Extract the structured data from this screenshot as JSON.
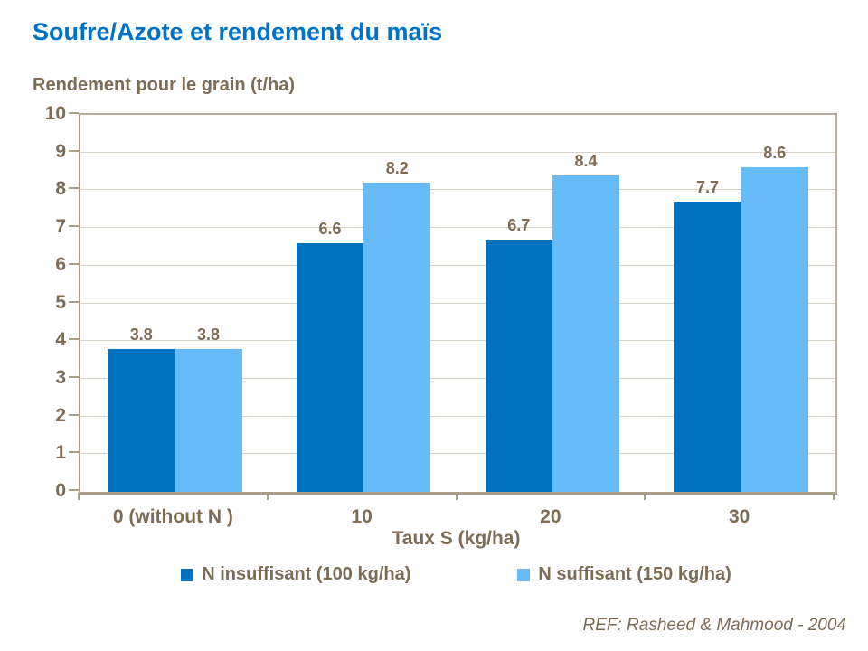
{
  "title": "Soufre/Azote et rendement du maïs",
  "footer": "REF: Rasheed & Mahmood - 2004",
  "colors": {
    "title_blue": "#0072C6",
    "text_brown": "#7D6B54",
    "gridline": "#D8D1C5",
    "axis_line": "#AB9F8C",
    "series1": "#0072C0",
    "series2": "#66BBF8"
  },
  "chart_data": {
    "type": "bar",
    "title": "Soufre/Azote et rendement du maïs",
    "categories": [
      "0 (without N )",
      "10",
      "20",
      "30"
    ],
    "series": [
      {
        "name": "N insuffisant (100 kg/ha)",
        "color": "#0072C0",
        "values": [
          3.8,
          6.6,
          6.7,
          7.7
        ]
      },
      {
        "name": "N suffisant (150 kg/ha)",
        "color": "#66BBF8",
        "values": [
          3.8,
          8.2,
          8.4,
          8.6
        ]
      }
    ],
    "xlabel": "Taux S (kg/ha)",
    "ylabel": "Rendement pour le grain (t/ha)",
    "ylim": [
      0,
      10
    ],
    "ytick_step": 1,
    "value_label_decimals": 1,
    "grid": true,
    "legend_position": "bottom"
  }
}
